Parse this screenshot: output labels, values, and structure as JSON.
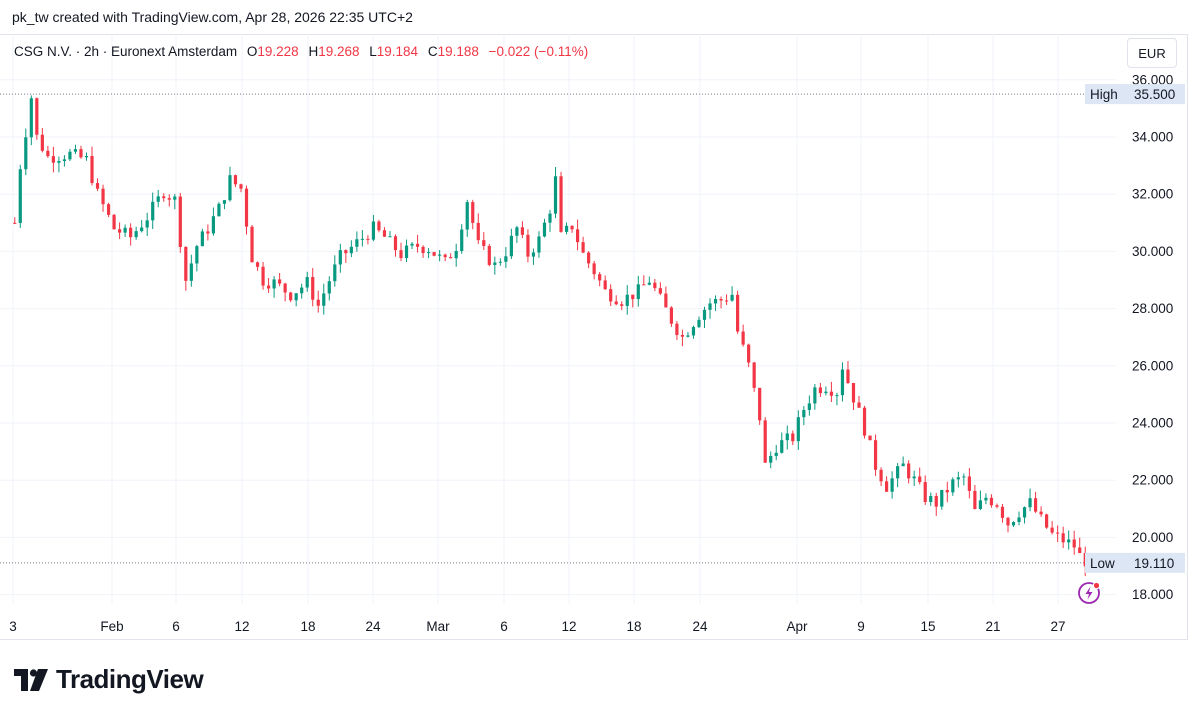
{
  "header": {
    "text": "pk_tw created with TradingView.com, Apr 28, 2026 22:35 UTC+2"
  },
  "legend": {
    "symbol": "CSG N.V. · 2h · Euronext Amsterdam",
    "o_label": "O",
    "o_value": "19.228",
    "h_label": "H",
    "h_value": "19.268",
    "l_label": "L",
    "l_value": "19.184",
    "c_label": "C",
    "c_value": "19.188",
    "change": "−0.022 (−0.11%)"
  },
  "currency": "EUR",
  "high_label": {
    "label": "High",
    "value": "35.500"
  },
  "low_label": {
    "label": "Low",
    "value": "19.110"
  },
  "footer": {
    "brand": "TradingView"
  },
  "colors": {
    "up": "#089981",
    "down": "#f23645",
    "grid": "#f0f3fa",
    "axis_text": "#131722",
    "label_bg": "#dde6f5"
  },
  "chart_data": {
    "type": "candlestick",
    "interval": "2h",
    "y_axis": {
      "ticks": [
        "36.000",
        "34.000",
        "32.000",
        "30.000",
        "28.000",
        "26.000",
        "24.000",
        "22.000",
        "20.000",
        "18.000"
      ],
      "range": [
        17.3,
        36.0
      ]
    },
    "x_axis": {
      "tick_labels": [
        "3",
        "Feb",
        "6",
        "12",
        "18",
        "24",
        "Mar",
        "6",
        "12",
        "18",
        "24",
        "Apr",
        "9",
        "15",
        "21",
        "27"
      ]
    },
    "high_line": 35.5,
    "low_line": 19.11,
    "price_path": [
      [
        0,
        31.0
      ],
      [
        1,
        33.0
      ],
      [
        3,
        35.4
      ],
      [
        4,
        34.0
      ],
      [
        6,
        33.3
      ],
      [
        10,
        33.4
      ],
      [
        13,
        33.2
      ],
      [
        15,
        32.0
      ],
      [
        18,
        30.8
      ],
      [
        21,
        30.5
      ],
      [
        24,
        31.2
      ],
      [
        27,
        32.1
      ],
      [
        29,
        31.8
      ],
      [
        31,
        29.0
      ],
      [
        33,
        30.2
      ],
      [
        35,
        30.8
      ],
      [
        37,
        31.5
      ],
      [
        39,
        32.5
      ],
      [
        41,
        32.2
      ],
      [
        43,
        29.8
      ],
      [
        45,
        29.0
      ],
      [
        47,
        28.9
      ],
      [
        50,
        28.5
      ],
      [
        53,
        28.9
      ],
      [
        55,
        28.1
      ],
      [
        57,
        29.0
      ],
      [
        59,
        29.8
      ],
      [
        62,
        30.3
      ],
      [
        65,
        30.8
      ],
      [
        67,
        30.5
      ],
      [
        70,
        29.9
      ],
      [
        73,
        30.2
      ],
      [
        75,
        30.1
      ],
      [
        78,
        29.6
      ],
      [
        80,
        30.2
      ],
      [
        82,
        31.8
      ],
      [
        84,
        30.2
      ],
      [
        87,
        29.5
      ],
      [
        89,
        30.0
      ],
      [
        91,
        30.8
      ],
      [
        93,
        29.9
      ],
      [
        95,
        30.4
      ],
      [
        97,
        31.5
      ],
      [
        98,
        32.5
      ],
      [
        99,
        30.5
      ],
      [
        101,
        30.9
      ],
      [
        103,
        29.9
      ],
      [
        105,
        29.3
      ],
      [
        107,
        28.6
      ],
      [
        110,
        28.3
      ],
      [
        113,
        28.6
      ],
      [
        115,
        29.0
      ],
      [
        117,
        28.3
      ],
      [
        119,
        27.6
      ],
      [
        121,
        27.0
      ],
      [
        124,
        27.8
      ],
      [
        126,
        28.2
      ],
      [
        128,
        28.3
      ],
      [
        130,
        28.5
      ],
      [
        131,
        27.2
      ],
      [
        133,
        26.0
      ],
      [
        135,
        24.2
      ],
      [
        136,
        22.5
      ],
      [
        138,
        23.2
      ],
      [
        141,
        23.5
      ],
      [
        143,
        24.5
      ],
      [
        145,
        25.2
      ],
      [
        147,
        25.3
      ],
      [
        149,
        25.1
      ],
      [
        150,
        26.0
      ],
      [
        152,
        24.9
      ],
      [
        154,
        23.8
      ],
      [
        156,
        22.5
      ],
      [
        158,
        21.8
      ],
      [
        161,
        22.5
      ],
      [
        163,
        22.0
      ],
      [
        165,
        21.4
      ],
      [
        167,
        21.2
      ],
      [
        170,
        21.9
      ],
      [
        172,
        22.1
      ],
      [
        173,
        21.5
      ],
      [
        174,
        20.9
      ],
      [
        176,
        21.4
      ],
      [
        178,
        21.2
      ],
      [
        180,
        20.5
      ],
      [
        182,
        20.9
      ],
      [
        184,
        21.2
      ],
      [
        186,
        20.6
      ],
      [
        188,
        20.1
      ],
      [
        190,
        19.9
      ],
      [
        192,
        19.7
      ],
      [
        193,
        19.35
      ],
      [
        194,
        19.19
      ]
    ]
  }
}
